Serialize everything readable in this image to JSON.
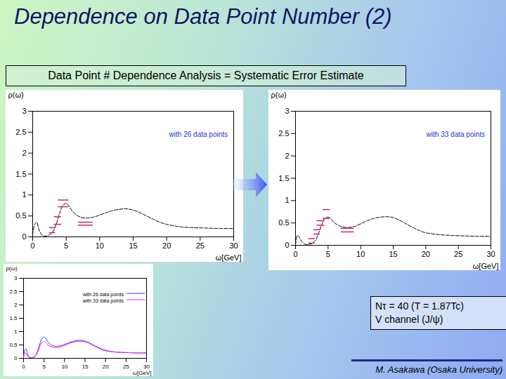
{
  "slide": {
    "title": "Dependence on Data Point Number (2)",
    "box_text": "Data Point # Dependence Analysis = Systematic Error Estimate",
    "info": [
      "Nτ = 40 (T = 1.87Tc)",
      "V channel (J/ψ)"
    ],
    "footer": "M. Asakawa (Osaka University)"
  },
  "chart_data": [
    {
      "type": "line",
      "y_label": "ρ(ω)",
      "x_label": "ω[GeV]",
      "xlim": [
        0,
        30
      ],
      "xticks": [
        0,
        5,
        10,
        15,
        20,
        25,
        30
      ],
      "ylim": [
        0,
        3
      ],
      "yticks": [
        0,
        0.5,
        1,
        1.5,
        2,
        2.5,
        3
      ],
      "legend": "top-right",
      "x": [
        0,
        0.3,
        0.6,
        1,
        1.5,
        2,
        2.5,
        3,
        3.5,
        4,
        4.5,
        5,
        5.5,
        6,
        7,
        8,
        9,
        10,
        11,
        12,
        13,
        14,
        15,
        16,
        17,
        18,
        19,
        20,
        22,
        24,
        26,
        28,
        30
      ],
      "series": [
        {
          "name": "with 26 data points",
          "color": "#000000",
          "line_style": "dashed",
          "values": [
            0.05,
            0.3,
            0.35,
            0.15,
            0.03,
            0.02,
            0.05,
            0.12,
            0.3,
            0.55,
            0.75,
            0.8,
            0.72,
            0.6,
            0.48,
            0.45,
            0.47,
            0.52,
            0.58,
            0.63,
            0.66,
            0.67,
            0.64,
            0.58,
            0.5,
            0.42,
            0.35,
            0.3,
            0.24,
            0.22,
            0.21,
            0.2,
            0.2
          ]
        }
      ],
      "error_bars": [
        {
          "x0": 2.5,
          "x1": 3.4,
          "lo": 0.1,
          "hi": 0.22
        },
        {
          "x0": 3.2,
          "x1": 4.3,
          "lo": 0.3,
          "hi": 0.48
        },
        {
          "x0": 3.8,
          "x1": 5.4,
          "lo": 0.72,
          "hi": 0.88
        },
        {
          "x0": 6.8,
          "x1": 9.0,
          "lo": 0.28,
          "hi": 0.35
        }
      ]
    },
    {
      "type": "line",
      "y_label": "ρ(ω)",
      "x_label": "ω[GeV]",
      "xlim": [
        0,
        30
      ],
      "xticks": [
        0,
        5,
        10,
        15,
        20,
        25,
        30
      ],
      "ylim": [
        0,
        3
      ],
      "yticks": [
        0,
        0.5,
        1,
        1.5,
        2,
        2.5,
        3
      ],
      "legend": "top-right",
      "x": [
        0,
        0.3,
        0.6,
        1,
        1.5,
        2,
        2.5,
        3,
        3.5,
        4,
        4.5,
        5,
        5.5,
        6,
        7,
        8,
        9,
        10,
        11,
        12,
        13,
        14,
        15,
        16,
        17,
        18,
        19,
        20,
        22,
        24,
        26,
        28,
        30
      ],
      "series": [
        {
          "name": "with 33 data points",
          "color": "#000000",
          "line_style": "dashed",
          "values": [
            0.02,
            0.22,
            0.18,
            0.08,
            0.02,
            0.02,
            0.04,
            0.1,
            0.25,
            0.45,
            0.6,
            0.63,
            0.58,
            0.5,
            0.42,
            0.4,
            0.42,
            0.48,
            0.55,
            0.6,
            0.63,
            0.64,
            0.62,
            0.56,
            0.48,
            0.4,
            0.33,
            0.28,
            0.24,
            0.22,
            0.21,
            0.2,
            0.2
          ]
        }
      ],
      "error_bars": [
        {
          "x0": 2.0,
          "x1": 3.0,
          "lo": 0.05,
          "hi": 0.15
        },
        {
          "x0": 2.8,
          "x1": 3.8,
          "lo": 0.25,
          "hi": 0.35
        },
        {
          "x0": 3.3,
          "x1": 4.5,
          "lo": 0.45,
          "hi": 0.55
        },
        {
          "x0": 4.2,
          "x1": 5.3,
          "lo": 0.6,
          "hi": 0.8
        },
        {
          "x0": 7.0,
          "x1": 9.0,
          "lo": 0.3,
          "hi": 0.38
        }
      ]
    },
    {
      "type": "line",
      "y_label": "ρ(ω)",
      "x_label": "ω[GeV]",
      "xlim": [
        0,
        30
      ],
      "xticks": [
        0,
        5,
        10,
        15,
        20,
        25,
        30
      ],
      "ylim": [
        0,
        3
      ],
      "yticks": [
        0,
        0.5,
        1,
        1.5,
        2,
        2.5,
        3
      ],
      "legend": "top-right",
      "x": [
        0,
        0.3,
        0.6,
        1,
        1.5,
        2,
        2.5,
        3,
        3.5,
        4,
        4.5,
        5,
        5.5,
        6,
        7,
        8,
        9,
        10,
        11,
        12,
        13,
        14,
        15,
        16,
        17,
        18,
        19,
        20,
        22,
        24,
        26,
        28,
        30
      ],
      "series": [
        {
          "name": "with 26 data points",
          "color": "#3333ff",
          "line_style": "solid",
          "values": [
            0.05,
            0.3,
            0.35,
            0.15,
            0.03,
            0.02,
            0.05,
            0.12,
            0.3,
            0.55,
            0.75,
            0.8,
            0.72,
            0.6,
            0.48,
            0.45,
            0.47,
            0.52,
            0.58,
            0.63,
            0.66,
            0.67,
            0.64,
            0.58,
            0.5,
            0.42,
            0.35,
            0.3,
            0.24,
            0.22,
            0.21,
            0.2,
            0.2
          ]
        },
        {
          "name": "with 33 data points",
          "color": "#ee22ee",
          "line_style": "solid",
          "values": [
            0.02,
            0.22,
            0.18,
            0.08,
            0.02,
            0.02,
            0.04,
            0.1,
            0.25,
            0.45,
            0.6,
            0.63,
            0.58,
            0.5,
            0.42,
            0.4,
            0.42,
            0.48,
            0.55,
            0.6,
            0.63,
            0.64,
            0.62,
            0.56,
            0.48,
            0.4,
            0.33,
            0.28,
            0.24,
            0.22,
            0.21,
            0.2,
            0.2
          ]
        }
      ]
    }
  ]
}
